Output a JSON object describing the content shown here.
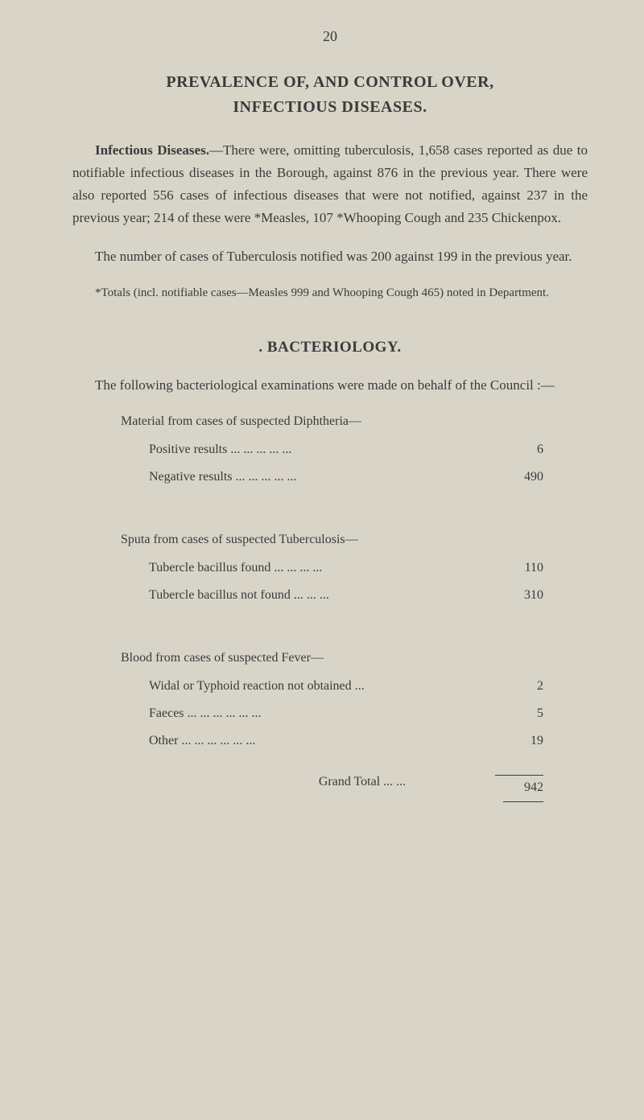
{
  "page_number": "20",
  "title_line1": "PREVALENCE OF, AND CONTROL OVER,",
  "title_line2": "INFECTIOUS DISEASES.",
  "para1_lead": "Infectious Diseases.",
  "para1_body": "—There were, omitting tuberculosis, 1,658 cases reported as due to notifiable infectious diseases in the Borough, against 876 in the previous year. There were also reported 556 cases of infectious diseases that were not notified, against 237 in the previous year; 214 of these were *Measles, 107 *Whooping Cough and 235 Chickenpox.",
  "para2": "The number of cases of Tuberculosis notified was 200 against 199 in the previous year.",
  "footnote": "*Totals (incl. notifiable cases—Measles 999 and Whooping Cough 465) noted in Department.",
  "section2_heading": ". BACTERIOLOGY.",
  "para3": "The following bacteriological examinations were made on behalf of the Council :—",
  "group1_heading": "Material from cases of suspected Diphtheria—",
  "group1_rows": [
    {
      "label": "Positive results   ...     ...     ...     ...     ...",
      "value": "6"
    },
    {
      "label": "Negative results ...     ...     ...     ...     ...",
      "value": "490"
    }
  ],
  "group2_heading": "Sputa from cases of suspected Tuberculosis—",
  "group2_rows": [
    {
      "label": "Tubercle bacillus found ...     ...     ...     ...",
      "value": "110"
    },
    {
      "label": "Tubercle bacillus not found     ...     ...     ...",
      "value": "310"
    }
  ],
  "group3_heading": "Blood from cases of suspected Fever—",
  "group3_rows": [
    {
      "label": "Widal or Typhoid reaction not obtained     ...",
      "value": "2"
    },
    {
      "label": "Faeces     ...     ...     ...     ...     ...     ...",
      "value": "5"
    },
    {
      "label": "Other       ...     ...     ...     ...     ...     ...",
      "value": "19"
    }
  ],
  "grand_total_label": "Grand Total     ...     ...",
  "grand_total_value": "942"
}
